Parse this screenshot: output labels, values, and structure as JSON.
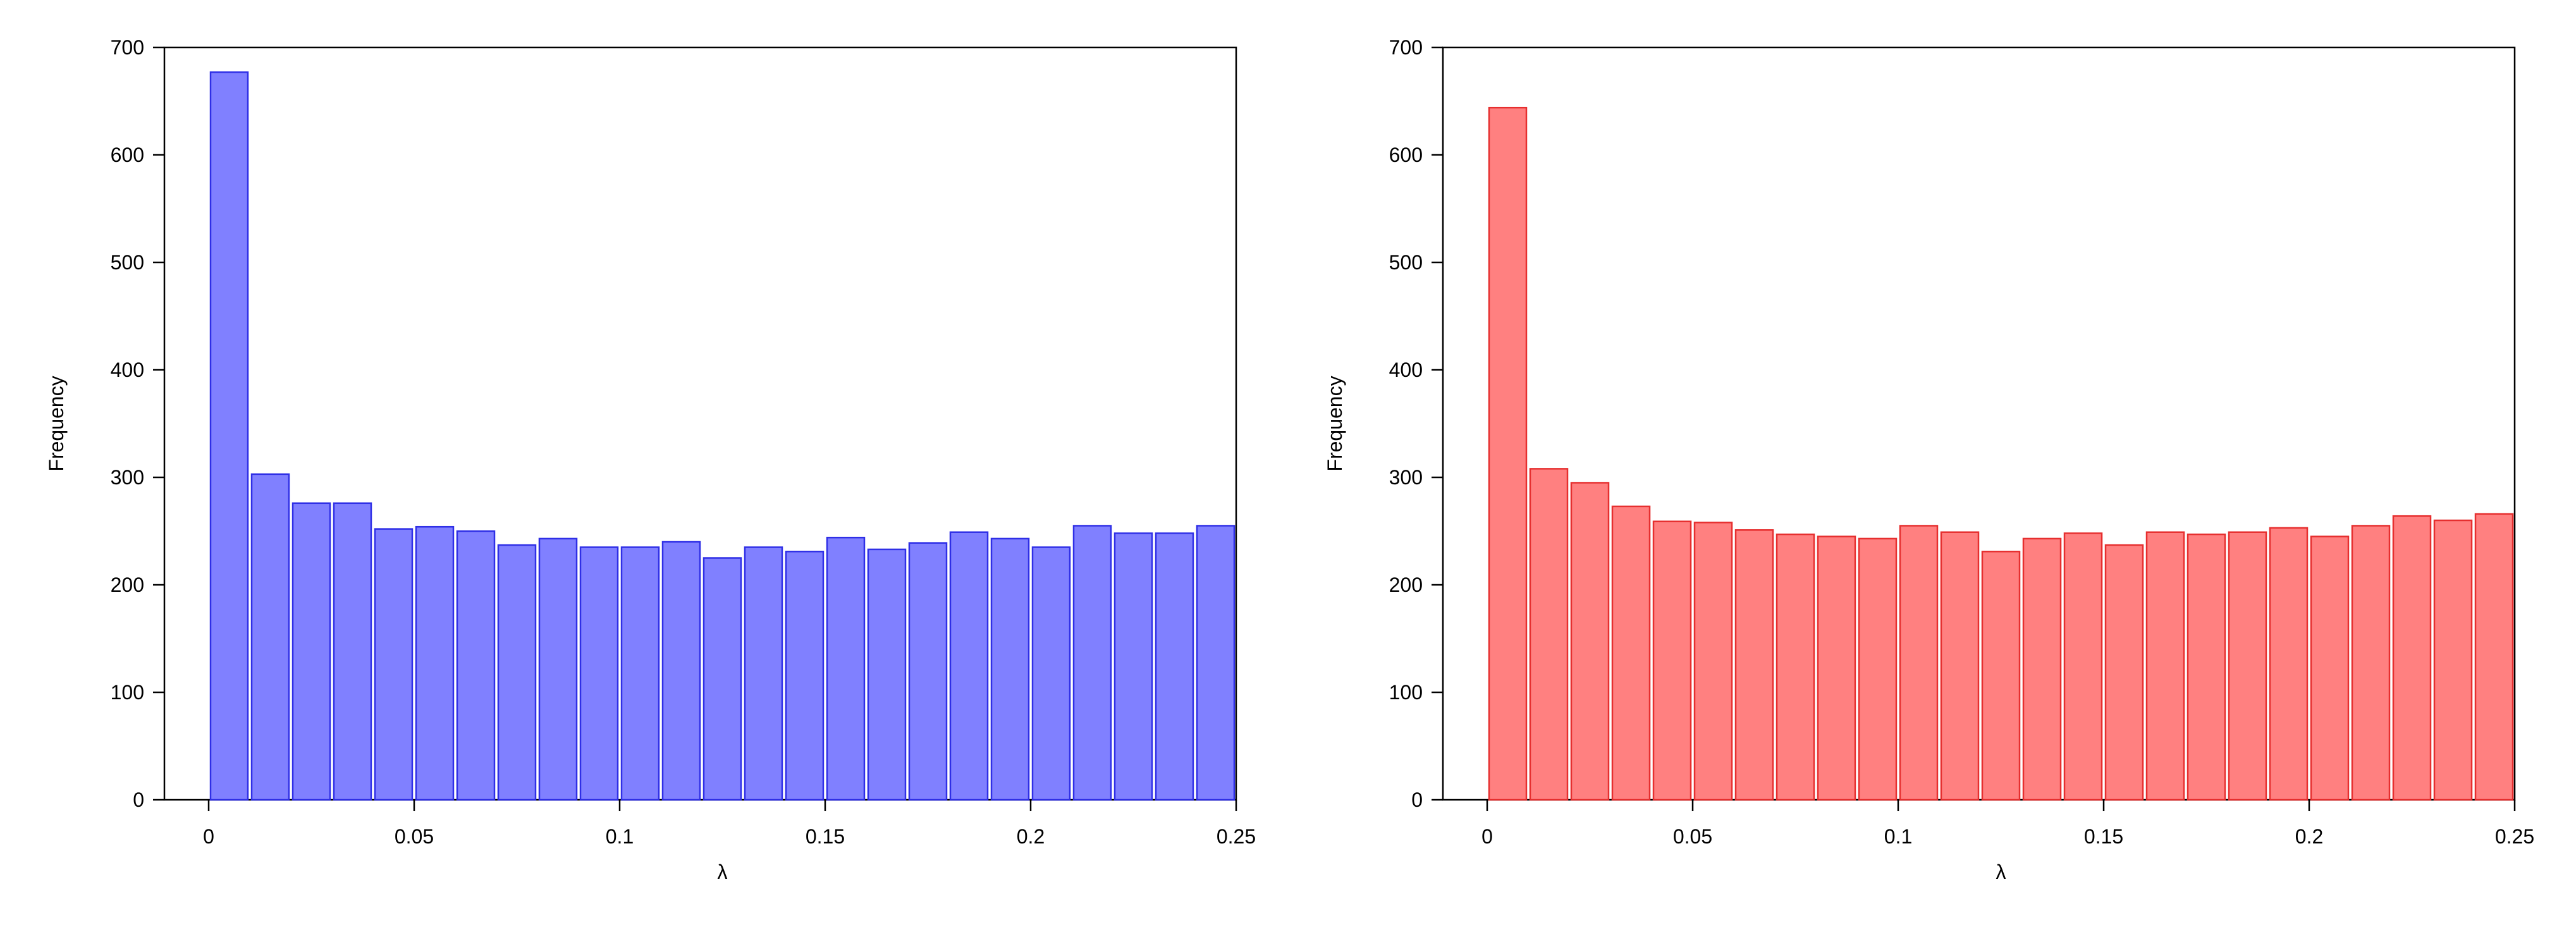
{
  "chart_data": [
    {
      "type": "bar",
      "xlabel": "λ",
      "ylabel": "Frequency",
      "xlim": [
        0,
        0.25
      ],
      "ylim": [
        0,
        700
      ],
      "x_ticks": [
        "0",
        "0.05",
        "0.1",
        "0.15",
        "0.2",
        "0.25"
      ],
      "y_ticks": [
        "0",
        "100",
        "200",
        "300",
        "400",
        "500",
        "600",
        "700"
      ],
      "bin_edges": [
        0,
        0.01,
        0.02,
        0.03,
        0.04,
        0.05,
        0.06,
        0.07,
        0.08,
        0.09,
        0.1,
        0.11,
        0.12,
        0.13,
        0.14,
        0.15,
        0.16,
        0.17,
        0.18,
        0.19,
        0.2,
        0.21,
        0.22,
        0.23,
        0.24,
        0.25
      ],
      "values": [
        677,
        303,
        276,
        276,
        252,
        254,
        250,
        237,
        243,
        235,
        235,
        240,
        225,
        235,
        231,
        244,
        233,
        239,
        249,
        243,
        235,
        255,
        248,
        248,
        255
      ],
      "grid": false,
      "colors": {
        "fill": "#8080ff",
        "edge": "#2f2fe6"
      }
    },
    {
      "type": "bar",
      "xlabel": "λ",
      "ylabel": "Frequency",
      "xlim": [
        0,
        0.25
      ],
      "ylim": [
        0,
        700
      ],
      "x_ticks": [
        "0",
        "0.05",
        "0.1",
        "0.15",
        "0.2",
        "0.25"
      ],
      "y_ticks": [
        "0",
        "100",
        "200",
        "300",
        "400",
        "500",
        "600",
        "700"
      ],
      "bin_edges": [
        0,
        0.01,
        0.02,
        0.03,
        0.04,
        0.05,
        0.06,
        0.07,
        0.08,
        0.09,
        0.1,
        0.11,
        0.12,
        0.13,
        0.14,
        0.15,
        0.16,
        0.17,
        0.18,
        0.19,
        0.2,
        0.21,
        0.22,
        0.23,
        0.24,
        0.25
      ],
      "values": [
        644,
        308,
        295,
        273,
        259,
        258,
        251,
        247,
        245,
        243,
        255,
        249,
        231,
        243,
        248,
        237,
        249,
        247,
        249,
        253,
        245,
        255,
        264,
        260,
        266
      ],
      "grid": false,
      "colors": {
        "fill": "#ff8080",
        "edge": "#e62f2f"
      }
    }
  ]
}
